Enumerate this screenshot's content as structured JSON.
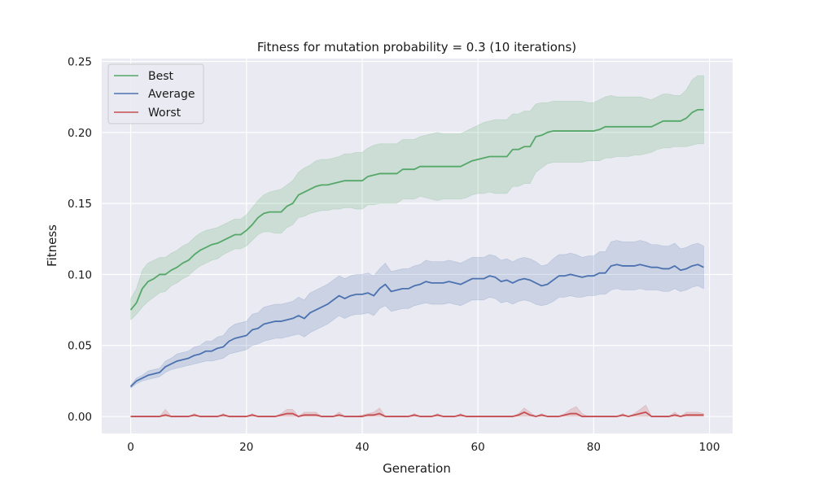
{
  "chart_data": {
    "type": "line",
    "title": "Fitness for mutation probability = 0.3 (10 iterations)",
    "xlabel": "Generation",
    "ylabel": "Fitness",
    "xlim": [
      -5,
      104
    ],
    "ylim": [
      -0.012,
      0.252
    ],
    "xticks": [
      0,
      20,
      40,
      60,
      80,
      100
    ],
    "yticks": [
      0.0,
      0.05,
      0.1,
      0.15,
      0.2,
      0.25
    ],
    "xtick_labels": [
      "0",
      "20",
      "40",
      "60",
      "80",
      "100"
    ],
    "ytick_labels": [
      "0.00",
      "0.05",
      "0.10",
      "0.15",
      "0.20",
      "0.25"
    ],
    "grid": true,
    "background": "#eaeaf2",
    "legend_position": "top-left",
    "x_start": 0,
    "x_step": 1,
    "series": [
      {
        "name": "Best",
        "color": "#55a868",
        "values": [
          0.075,
          0.08,
          0.09,
          0.095,
          0.097,
          0.1,
          0.1,
          0.103,
          0.105,
          0.108,
          0.11,
          0.114,
          0.117,
          0.119,
          0.121,
          0.122,
          0.124,
          0.126,
          0.128,
          0.128,
          0.131,
          0.135,
          0.14,
          0.143,
          0.144,
          0.144,
          0.144,
          0.148,
          0.15,
          0.156,
          0.158,
          0.16,
          0.162,
          0.163,
          0.163,
          0.164,
          0.165,
          0.166,
          0.166,
          0.166,
          0.166,
          0.169,
          0.17,
          0.171,
          0.171,
          0.171,
          0.171,
          0.174,
          0.174,
          0.174,
          0.176,
          0.176,
          0.176,
          0.176,
          0.176,
          0.176,
          0.176,
          0.176,
          0.178,
          0.18,
          0.181,
          0.182,
          0.183,
          0.183,
          0.183,
          0.183,
          0.188,
          0.188,
          0.19,
          0.19,
          0.197,
          0.198,
          0.2,
          0.201,
          0.201,
          0.201,
          0.201,
          0.201,
          0.201,
          0.201,
          0.201,
          0.202,
          0.204,
          0.204,
          0.204,
          0.204,
          0.204,
          0.204,
          0.204,
          0.204,
          0.204,
          0.206,
          0.208,
          0.208,
          0.208,
          0.208,
          0.21,
          0.214,
          0.216,
          0.216
        ],
        "lower": [
          0.068,
          0.072,
          0.077,
          0.081,
          0.084,
          0.087,
          0.088,
          0.092,
          0.094,
          0.097,
          0.099,
          0.103,
          0.106,
          0.108,
          0.11,
          0.111,
          0.114,
          0.116,
          0.118,
          0.118,
          0.12,
          0.124,
          0.128,
          0.13,
          0.13,
          0.129,
          0.129,
          0.133,
          0.135,
          0.14,
          0.141,
          0.143,
          0.144,
          0.145,
          0.145,
          0.146,
          0.146,
          0.147,
          0.147,
          0.146,
          0.146,
          0.149,
          0.149,
          0.15,
          0.15,
          0.15,
          0.15,
          0.153,
          0.153,
          0.153,
          0.155,
          0.154,
          0.153,
          0.152,
          0.153,
          0.153,
          0.153,
          0.153,
          0.154,
          0.156,
          0.157,
          0.157,
          0.158,
          0.157,
          0.157,
          0.157,
          0.162,
          0.162,
          0.164,
          0.164,
          0.172,
          0.175,
          0.178,
          0.179,
          0.179,
          0.179,
          0.179,
          0.179,
          0.179,
          0.18,
          0.18,
          0.18,
          0.182,
          0.182,
          0.183,
          0.183,
          0.183,
          0.184,
          0.184,
          0.185,
          0.186,
          0.188,
          0.189,
          0.189,
          0.19,
          0.19,
          0.19,
          0.191,
          0.192,
          0.192
        ],
        "upper": [
          0.083,
          0.09,
          0.103,
          0.108,
          0.11,
          0.112,
          0.112,
          0.115,
          0.117,
          0.12,
          0.122,
          0.126,
          0.129,
          0.131,
          0.132,
          0.133,
          0.135,
          0.137,
          0.139,
          0.139,
          0.142,
          0.147,
          0.152,
          0.156,
          0.158,
          0.159,
          0.16,
          0.163,
          0.166,
          0.172,
          0.175,
          0.177,
          0.18,
          0.181,
          0.181,
          0.182,
          0.183,
          0.185,
          0.185,
          0.186,
          0.186,
          0.189,
          0.191,
          0.192,
          0.192,
          0.192,
          0.192,
          0.195,
          0.195,
          0.195,
          0.197,
          0.198,
          0.199,
          0.2,
          0.199,
          0.199,
          0.199,
          0.199,
          0.201,
          0.203,
          0.205,
          0.207,
          0.208,
          0.209,
          0.209,
          0.209,
          0.213,
          0.213,
          0.215,
          0.215,
          0.22,
          0.221,
          0.221,
          0.222,
          0.222,
          0.222,
          0.222,
          0.222,
          0.222,
          0.221,
          0.221,
          0.223,
          0.225,
          0.226,
          0.225,
          0.225,
          0.225,
          0.225,
          0.225,
          0.224,
          0.223,
          0.225,
          0.227,
          0.227,
          0.226,
          0.226,
          0.23,
          0.237,
          0.24,
          0.24
        ]
      },
      {
        "name": "Average",
        "color": "#4c72b0",
        "values": [
          0.021,
          0.025,
          0.027,
          0.029,
          0.03,
          0.031,
          0.035,
          0.037,
          0.039,
          0.04,
          0.041,
          0.043,
          0.044,
          0.046,
          0.046,
          0.048,
          0.049,
          0.053,
          0.055,
          0.056,
          0.057,
          0.061,
          0.062,
          0.065,
          0.066,
          0.067,
          0.067,
          0.068,
          0.069,
          0.071,
          0.069,
          0.073,
          0.075,
          0.077,
          0.079,
          0.082,
          0.085,
          0.083,
          0.085,
          0.086,
          0.086,
          0.087,
          0.085,
          0.09,
          0.093,
          0.088,
          0.089,
          0.09,
          0.09,
          0.092,
          0.093,
          0.095,
          0.094,
          0.094,
          0.094,
          0.095,
          0.094,
          0.093,
          0.095,
          0.097,
          0.097,
          0.097,
          0.099,
          0.098,
          0.095,
          0.096,
          0.094,
          0.096,
          0.097,
          0.096,
          0.094,
          0.092,
          0.093,
          0.096,
          0.099,
          0.099,
          0.1,
          0.099,
          0.098,
          0.099,
          0.099,
          0.101,
          0.101,
          0.106,
          0.107,
          0.106,
          0.106,
          0.106,
          0.107,
          0.106,
          0.105,
          0.105,
          0.104,
          0.104,
          0.106,
          0.103,
          0.104,
          0.106,
          0.107,
          0.105
        ],
        "lower": [
          0.02,
          0.023,
          0.025,
          0.026,
          0.027,
          0.028,
          0.031,
          0.033,
          0.034,
          0.035,
          0.036,
          0.037,
          0.038,
          0.039,
          0.039,
          0.04,
          0.041,
          0.044,
          0.045,
          0.046,
          0.047,
          0.05,
          0.051,
          0.053,
          0.054,
          0.055,
          0.055,
          0.056,
          0.057,
          0.058,
          0.056,
          0.059,
          0.061,
          0.063,
          0.065,
          0.068,
          0.071,
          0.069,
          0.071,
          0.072,
          0.072,
          0.073,
          0.071,
          0.076,
          0.078,
          0.074,
          0.075,
          0.076,
          0.076,
          0.078,
          0.079,
          0.08,
          0.079,
          0.079,
          0.079,
          0.08,
          0.079,
          0.078,
          0.08,
          0.082,
          0.082,
          0.082,
          0.084,
          0.083,
          0.08,
          0.081,
          0.079,
          0.081,
          0.082,
          0.081,
          0.079,
          0.078,
          0.079,
          0.081,
          0.084,
          0.084,
          0.085,
          0.084,
          0.084,
          0.085,
          0.085,
          0.086,
          0.086,
          0.089,
          0.09,
          0.089,
          0.089,
          0.089,
          0.09,
          0.089,
          0.089,
          0.089,
          0.088,
          0.088,
          0.09,
          0.088,
          0.089,
          0.091,
          0.092,
          0.09
        ],
        "upper": [
          0.022,
          0.027,
          0.029,
          0.032,
          0.033,
          0.034,
          0.039,
          0.041,
          0.044,
          0.045,
          0.046,
          0.049,
          0.05,
          0.053,
          0.053,
          0.056,
          0.057,
          0.062,
          0.065,
          0.066,
          0.067,
          0.072,
          0.073,
          0.077,
          0.078,
          0.079,
          0.079,
          0.08,
          0.081,
          0.084,
          0.082,
          0.087,
          0.089,
          0.091,
          0.093,
          0.096,
          0.099,
          0.097,
          0.099,
          0.1,
          0.1,
          0.101,
          0.099,
          0.104,
          0.108,
          0.102,
          0.103,
          0.104,
          0.104,
          0.106,
          0.107,
          0.11,
          0.109,
          0.109,
          0.109,
          0.11,
          0.109,
          0.108,
          0.11,
          0.112,
          0.112,
          0.112,
          0.114,
          0.113,
          0.11,
          0.111,
          0.109,
          0.111,
          0.112,
          0.111,
          0.109,
          0.106,
          0.107,
          0.111,
          0.114,
          0.114,
          0.115,
          0.114,
          0.112,
          0.113,
          0.113,
          0.116,
          0.116,
          0.123,
          0.124,
          0.123,
          0.123,
          0.123,
          0.124,
          0.123,
          0.121,
          0.121,
          0.12,
          0.12,
          0.122,
          0.118,
          0.119,
          0.121,
          0.122,
          0.12
        ]
      },
      {
        "name": "Worst",
        "color": "#c44e52",
        "values": [
          0.0,
          0.0,
          0.0,
          0.0,
          0.0,
          0.0,
          0.001,
          0.0,
          0.0,
          0.0,
          0.0,
          0.001,
          0.0,
          0.0,
          0.0,
          0.0,
          0.001,
          0.0,
          0.0,
          0.0,
          0.0,
          0.001,
          0.0,
          0.0,
          0.0,
          0.0,
          0.001,
          0.002,
          0.002,
          0.0,
          0.001,
          0.001,
          0.001,
          0.0,
          0.0,
          0.0,
          0.001,
          0.0,
          0.0,
          0.0,
          0.0,
          0.001,
          0.001,
          0.002,
          0.0,
          0.0,
          0.0,
          0.0,
          0.0,
          0.001,
          0.0,
          0.0,
          0.0,
          0.001,
          0.0,
          0.0,
          0.0,
          0.001,
          0.0,
          0.0,
          0.0,
          0.0,
          0.0,
          0.0,
          0.0,
          0.0,
          0.0,
          0.001,
          0.003,
          0.001,
          0.0,
          0.001,
          0.0,
          0.0,
          0.0,
          0.001,
          0.002,
          0.002,
          0.0,
          0.0,
          0.0,
          0.0,
          0.0,
          0.0,
          0.0,
          0.001,
          0.0,
          0.001,
          0.002,
          0.003,
          0.0,
          0.0,
          0.0,
          0.0,
          0.001,
          0.0,
          0.001,
          0.001,
          0.001,
          0.001
        ],
        "lower": [
          0.0,
          0.0,
          0.0,
          0.0,
          0.0,
          0.0,
          0.0,
          0.0,
          0.0,
          0.0,
          0.0,
          0.0,
          0.0,
          0.0,
          0.0,
          0.0,
          0.0,
          0.0,
          0.0,
          0.0,
          0.0,
          0.0,
          0.0,
          0.0,
          0.0,
          0.0,
          0.0,
          0.0,
          0.0,
          0.0,
          0.0,
          0.0,
          0.0,
          0.0,
          0.0,
          0.0,
          0.0,
          0.0,
          0.0,
          0.0,
          0.0,
          0.0,
          0.0,
          0.0,
          0.0,
          0.0,
          0.0,
          0.0,
          0.0,
          0.0,
          0.0,
          0.0,
          0.0,
          0.0,
          0.0,
          0.0,
          0.0,
          0.0,
          0.0,
          0.0,
          0.0,
          0.0,
          0.0,
          0.0,
          0.0,
          0.0,
          0.0,
          0.0,
          0.0,
          0.0,
          0.0,
          0.0,
          0.0,
          0.0,
          0.0,
          0.0,
          0.0,
          0.0,
          0.0,
          0.0,
          0.0,
          0.0,
          0.0,
          0.0,
          0.0,
          0.0,
          0.0,
          0.0,
          0.0,
          0.0,
          0.0,
          0.0,
          0.0,
          0.0,
          0.0,
          0.0,
          0.0,
          0.0,
          0.0,
          0.0
        ],
        "upper": [
          0.0,
          0.0,
          0.0,
          0.0,
          0.0,
          0.0,
          0.005,
          0.0,
          0.0,
          0.0,
          0.0,
          0.002,
          0.0,
          0.0,
          0.0,
          0.0,
          0.002,
          0.0,
          0.0,
          0.0,
          0.0,
          0.002,
          0.0,
          0.0,
          0.0,
          0.0,
          0.002,
          0.005,
          0.005,
          0.0,
          0.003,
          0.003,
          0.003,
          0.0,
          0.0,
          0.0,
          0.003,
          0.0,
          0.0,
          0.0,
          0.001,
          0.002,
          0.003,
          0.006,
          0.0,
          0.0,
          0.0,
          0.0,
          0.0,
          0.002,
          0.0,
          0.0,
          0.0,
          0.002,
          0.0,
          0.0,
          0.0,
          0.002,
          0.0,
          0.0,
          0.0,
          0.0,
          0.0,
          0.0,
          0.0,
          0.0,
          0.0,
          0.002,
          0.006,
          0.003,
          0.0,
          0.002,
          0.0,
          0.0,
          0.0,
          0.002,
          0.005,
          0.007,
          0.002,
          0.0,
          0.0,
          0.0,
          0.0,
          0.0,
          0.0,
          0.002,
          0.0,
          0.002,
          0.005,
          0.008,
          0.0,
          0.0,
          0.0,
          0.0,
          0.003,
          0.0,
          0.003,
          0.003,
          0.003,
          0.002
        ]
      }
    ]
  }
}
